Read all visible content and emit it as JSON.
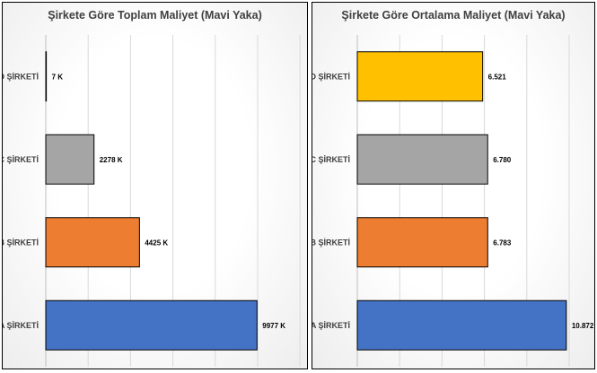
{
  "chart_data": [
    {
      "type": "bar",
      "orientation": "horizontal",
      "title": "Şirkete Göre Toplam Maliyet (Mavi Yaka)",
      "categories": [
        "D ŞİRKETİ",
        "C ŞİRKETİ",
        "B ŞİRKETİ",
        "A ŞİRKETİ"
      ],
      "values": [
        7,
        2278,
        4425,
        9977
      ],
      "value_labels": [
        "7 K",
        "2278 K",
        "4425 K",
        "9977 K"
      ],
      "colors": [
        "#ffc000",
        "#a5a5a5",
        "#ed7d31",
        "#4472c4"
      ],
      "xlim": [
        0,
        12000
      ],
      "grid": true,
      "legend": "none"
    },
    {
      "type": "bar",
      "orientation": "horizontal",
      "title": "Şirkete Göre Ortalama Maliyet (Mavi Yaka)",
      "categories": [
        "D ŞİRKETİ",
        "C ŞİRKETİ",
        "B ŞİRKETİ",
        "A ŞİRKETİ"
      ],
      "values": [
        6.521,
        6.78,
        6.783,
        10.872
      ],
      "value_labels": [
        "6.521",
        "6.780",
        "6.783",
        "10.872"
      ],
      "colors": [
        "#ffc000",
        "#a5a5a5",
        "#ed7d31",
        "#4472c4"
      ],
      "xlim": [
        0,
        12
      ],
      "grid": true,
      "legend": "none"
    }
  ]
}
